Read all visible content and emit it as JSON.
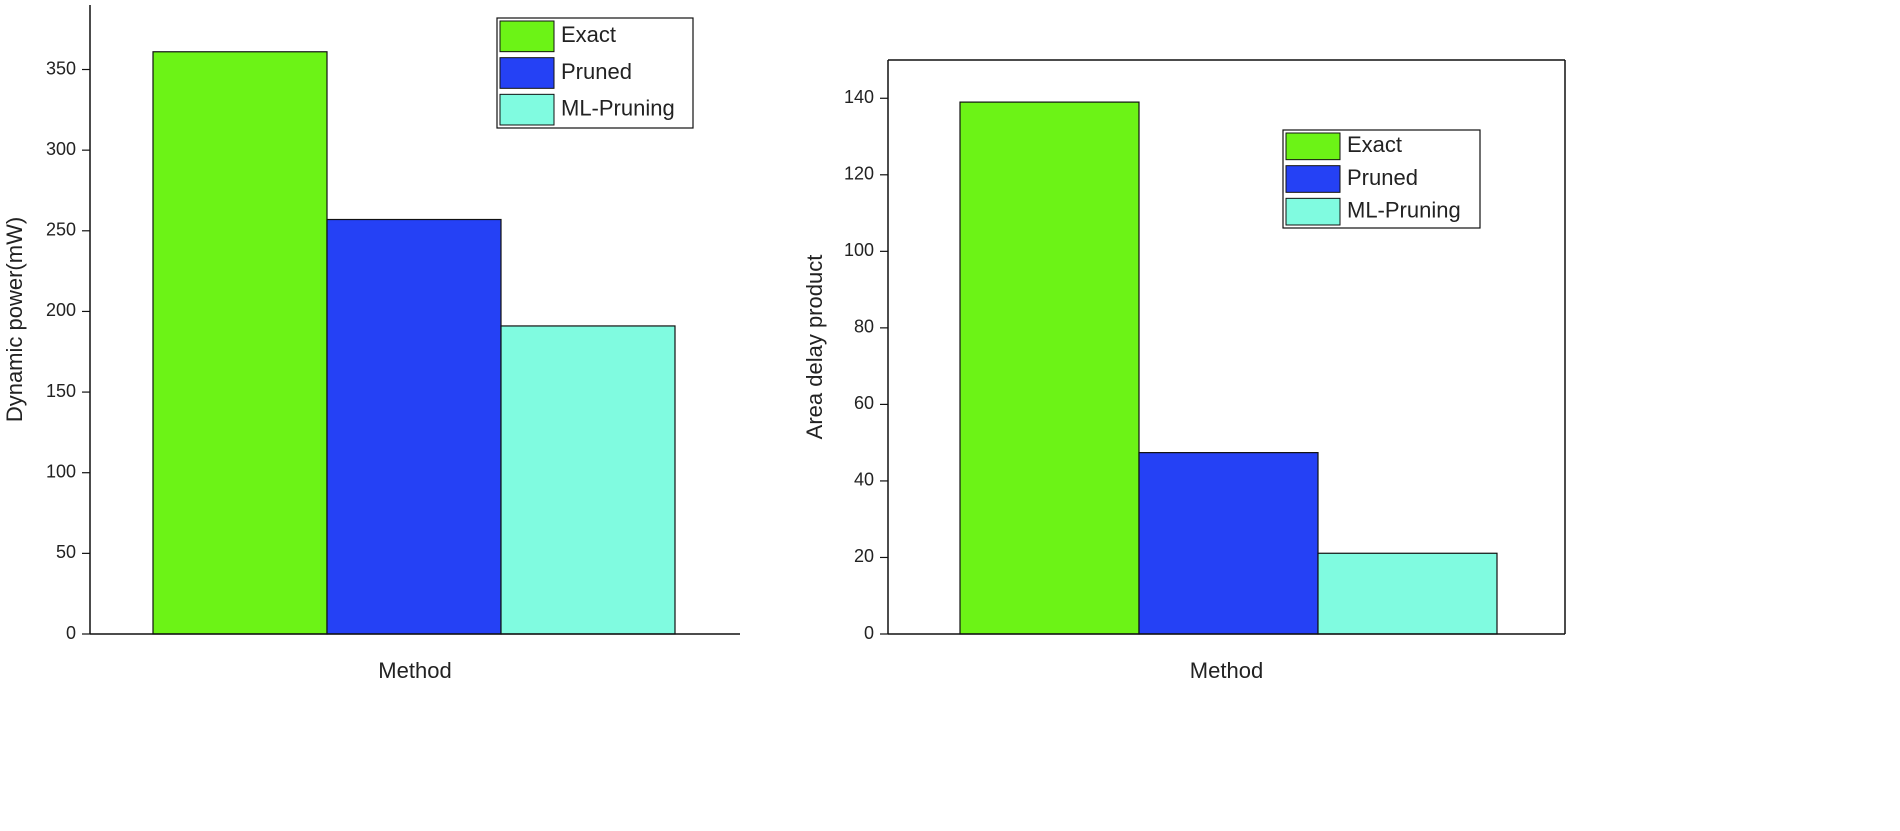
{
  "chart_data": [
    {
      "type": "bar",
      "categories": [
        null
      ],
      "xlabel": "Method",
      "ylabel": "Dynamic power(mW)",
      "series": [
        {
          "name": "Exact",
          "color": "#6cf316",
          "values": [
            361
          ]
        },
        {
          "name": "Pruned",
          "color": "#2541f5",
          "values": [
            257
          ]
        },
        {
          "name": "ML-Pruning",
          "color": "#80fbe0",
          "values": [
            191
          ]
        }
      ],
      "ylim": [
        0,
        390
      ],
      "yticks": [
        0,
        50,
        100,
        150,
        200,
        250,
        300,
        350
      ]
    },
    {
      "type": "bar",
      "categories": [
        null
      ],
      "xlabel": "Method",
      "ylabel": "Area delay product",
      "series": [
        {
          "name": "Exact",
          "color": "#6cf316",
          "values": [
            139
          ]
        },
        {
          "name": "Pruned",
          "color": "#2541f5",
          "values": [
            47.4
          ]
        },
        {
          "name": "ML-Pruning",
          "color": "#80fbe0",
          "values": [
            21.1
          ]
        }
      ],
      "ylim": [
        0,
        150
      ],
      "yticks": [
        0,
        20,
        40,
        60,
        80,
        100,
        120,
        140
      ]
    }
  ]
}
